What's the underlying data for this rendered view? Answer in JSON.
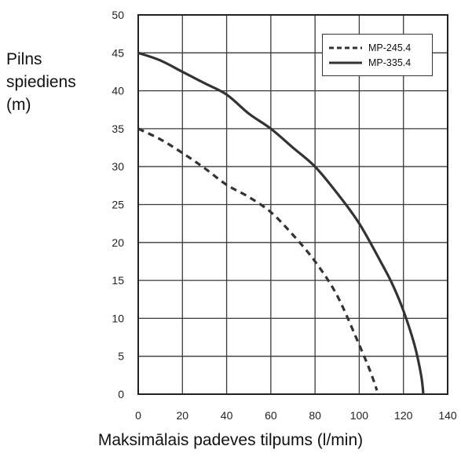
{
  "chart_data": {
    "type": "line",
    "ylabel_lines": [
      "Pilns",
      "spiediens",
      "(m)"
    ],
    "xlabel": "Maksimālais padeves tilpums (l/min)",
    "xlim": [
      0,
      140
    ],
    "ylim": [
      0,
      50
    ],
    "xticks": [
      0,
      20,
      40,
      60,
      80,
      100,
      120,
      140
    ],
    "yticks": [
      0,
      5,
      10,
      15,
      20,
      25,
      30,
      35,
      40,
      45,
      50
    ],
    "grid": true,
    "legend_position": "top-right",
    "series": [
      {
        "name": "MP-245.4",
        "style": "dashed",
        "color": "#333333",
        "x": [
          0,
          10,
          20,
          30,
          40,
          50,
          60,
          70,
          80,
          90,
          100,
          105,
          108
        ],
        "y": [
          35,
          33.6,
          31.8,
          29.8,
          27.6,
          26,
          24,
          21,
          17.5,
          13,
          6.5,
          3,
          0.5
        ]
      },
      {
        "name": "MP-335.4",
        "style": "solid",
        "color": "#333333",
        "x": [
          0,
          10,
          20,
          30,
          40,
          50,
          60,
          70,
          80,
          90,
          100,
          110,
          115,
          120,
          125,
          128,
          129
        ],
        "y": [
          45,
          44,
          42.5,
          41,
          39.5,
          37,
          35,
          32.5,
          30,
          26.5,
          22.5,
          17.3,
          14.5,
          11,
          6.5,
          2.5,
          0
        ]
      }
    ]
  }
}
